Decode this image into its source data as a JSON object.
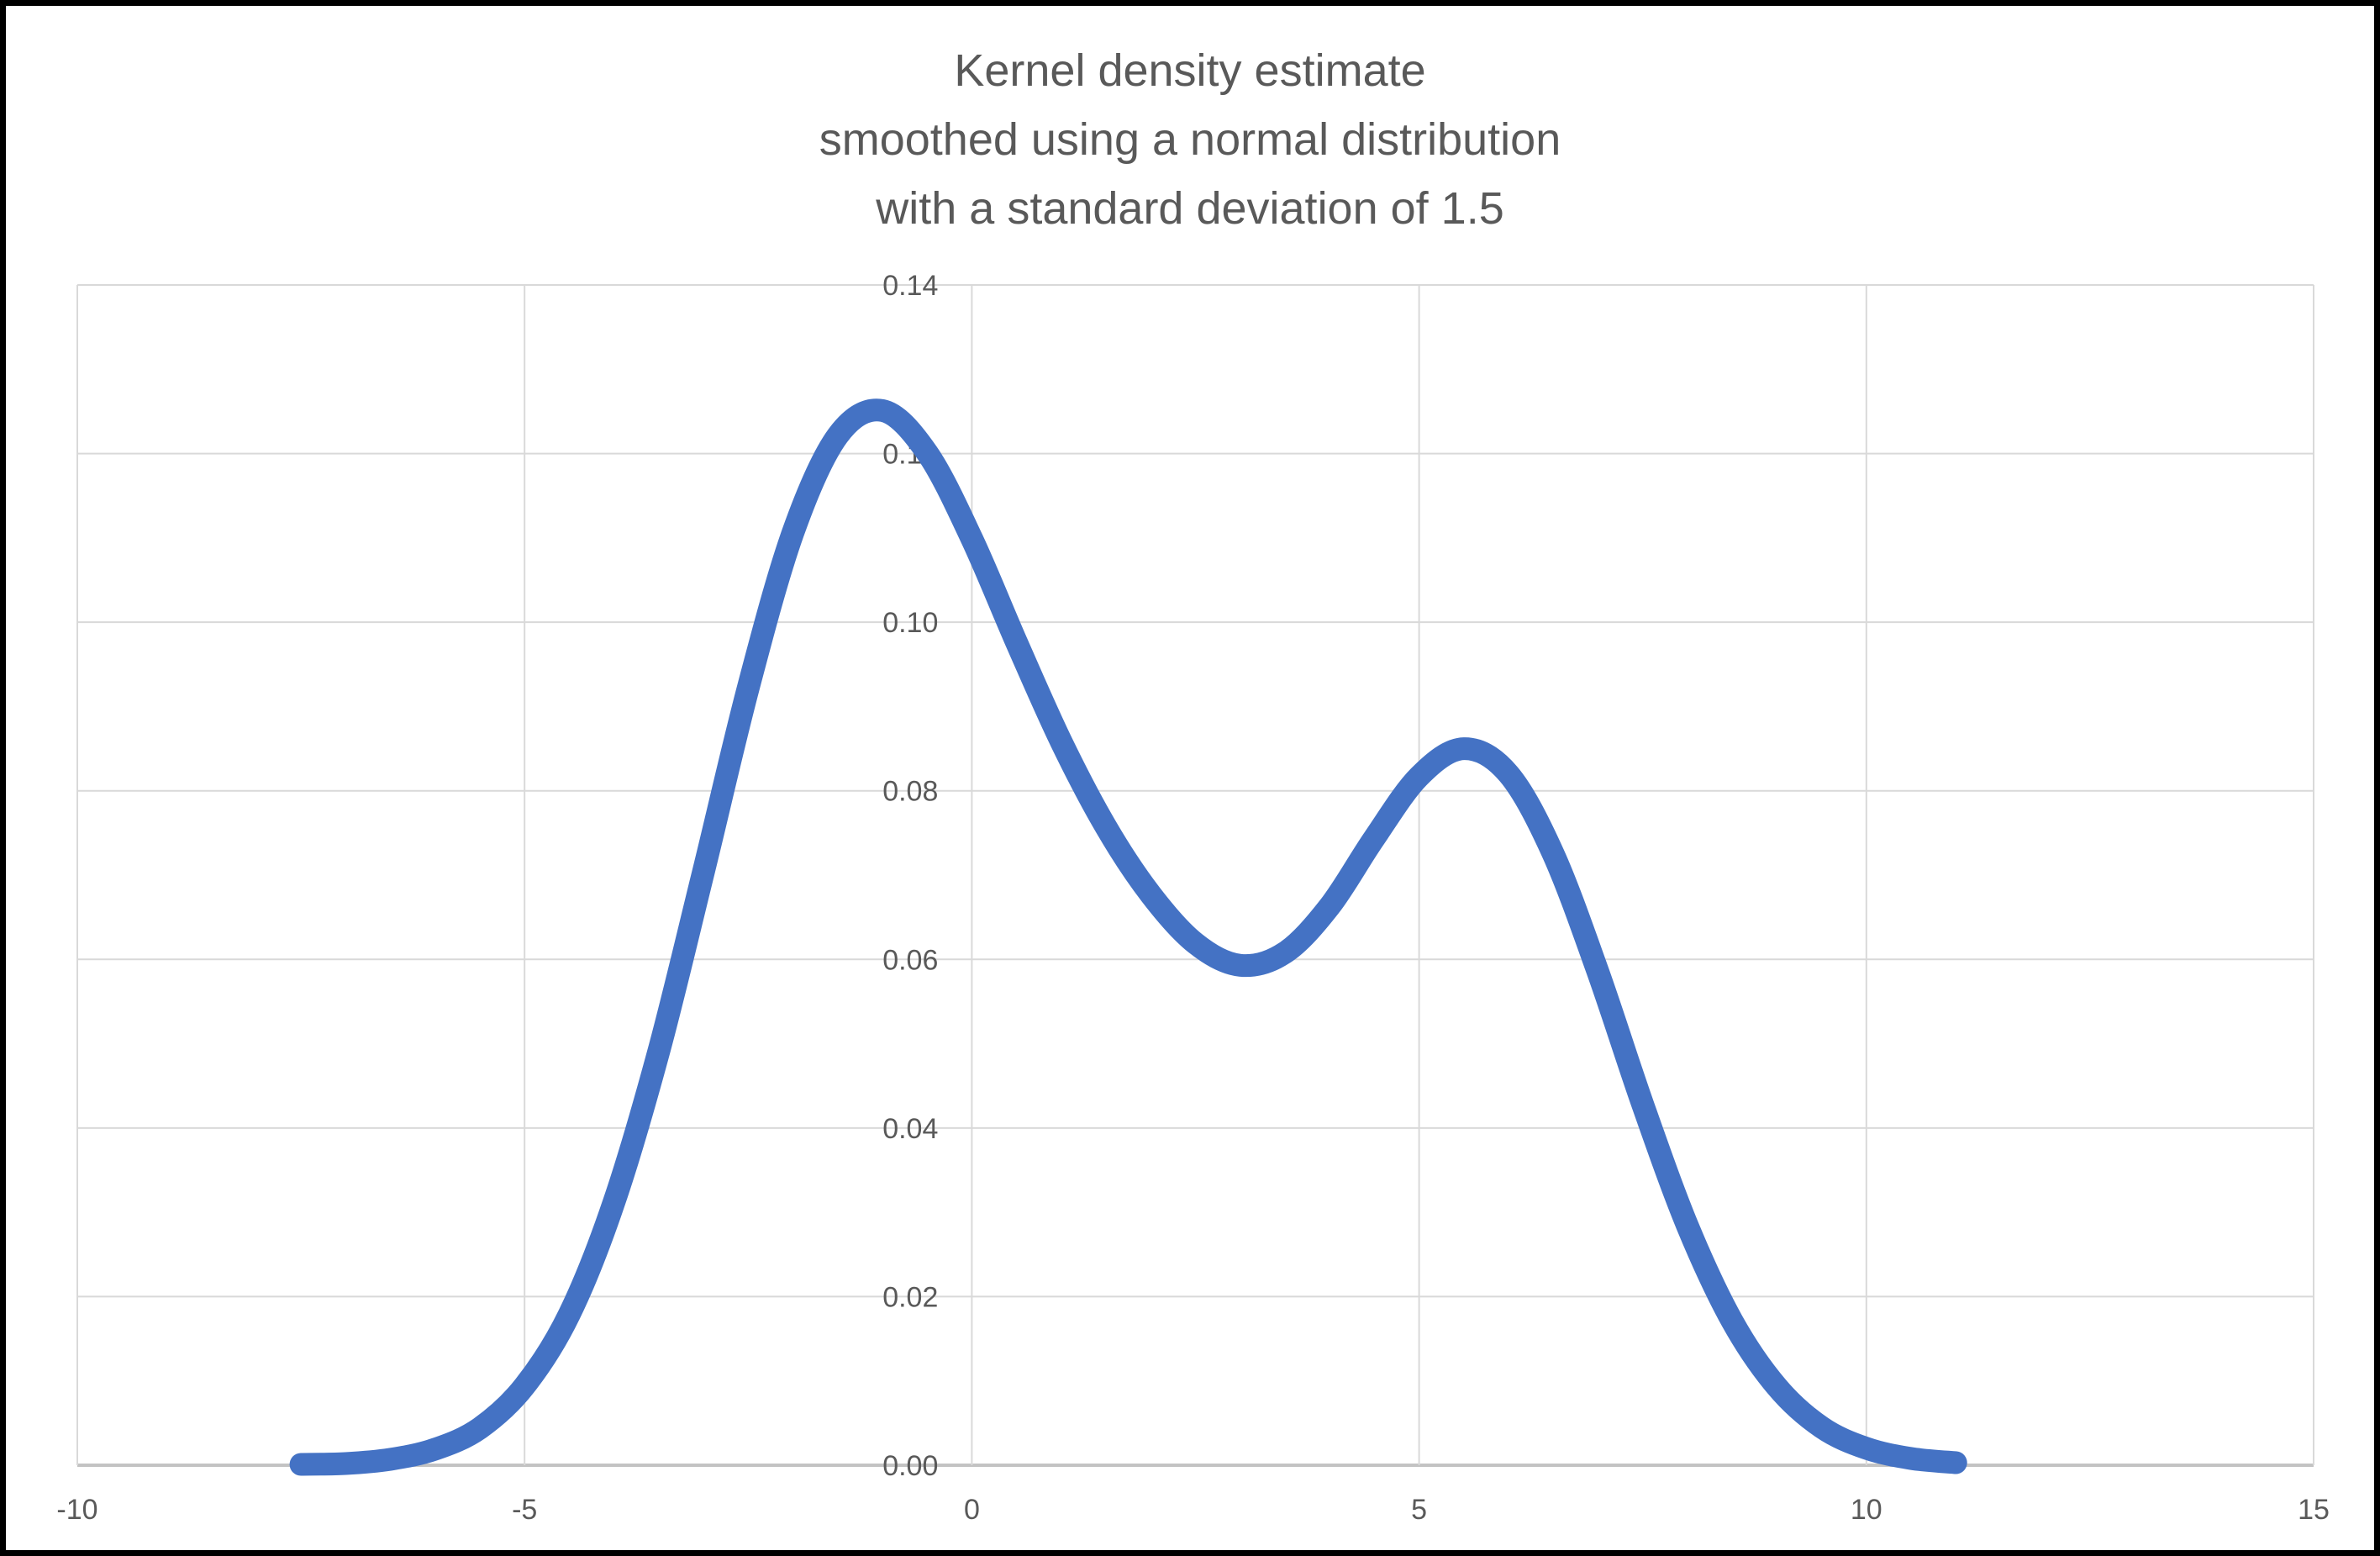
{
  "chart": {
    "title_lines": [
      "Kernel density estimate",
      "smoothed using a normal distribution",
      "with a standard deviation of 1.5"
    ]
  },
  "chart_data": {
    "type": "line",
    "title": "Kernel density estimate smoothed using a normal distribution with a standard deviation of 1.5",
    "xlabel": "",
    "ylabel": "",
    "xlim": [
      -10,
      15
    ],
    "ylim": [
      0,
      0.14
    ],
    "grid": true,
    "legend": false,
    "smoothing_distribution": "normal",
    "smoothing_standard_deviation": 1.5,
    "x_ticks": [
      -10,
      -5,
      0,
      5,
      10,
      15
    ],
    "x_tick_labels": [
      "-10",
      "-5",
      "0",
      "5",
      "10",
      "15"
    ],
    "y_ticks": [
      0,
      0.02,
      0.04,
      0.06,
      0.08,
      0.1,
      0.12,
      0.14
    ],
    "y_tick_labels": [
      "0.00",
      "0.02",
      "0.04",
      "0.06",
      "0.08",
      "0.10",
      "0.12",
      "0.14"
    ],
    "series": [
      {
        "name": "Kernel density estimate",
        "color": "#4472C4",
        "x": [
          -7.5,
          -7.0,
          -6.5,
          -6.0,
          -5.5,
          -5.0,
          -4.5,
          -4.0,
          -3.5,
          -3.0,
          -2.5,
          -2.0,
          -1.5,
          -1.0,
          -0.5,
          0.0,
          0.5,
          1.0,
          1.5,
          2.0,
          2.5,
          3.0,
          3.5,
          4.0,
          4.5,
          5.0,
          5.5,
          6.0,
          6.5,
          7.0,
          7.5,
          8.0,
          8.5,
          9.0,
          9.5,
          10.0,
          10.5,
          11.0
        ],
        "y": [
          0.0001,
          0.0002,
          0.0007,
          0.0019,
          0.0044,
          0.0094,
          0.0179,
          0.0312,
          0.0491,
          0.0704,
          0.0922,
          0.1106,
          0.1221,
          0.1251,
          0.1201,
          0.1099,
          0.0976,
          0.0858,
          0.0757,
          0.0677,
          0.0619,
          0.0593,
          0.0608,
          0.0663,
          0.0744,
          0.0817,
          0.085,
          0.082,
          0.0725,
          0.0585,
          0.0428,
          0.0284,
          0.0171,
          0.0093,
          0.0045,
          0.002,
          0.0008,
          0.0003
        ]
      }
    ],
    "colors": {
      "line": "#4472C4",
      "gridline": "#D9D9D9",
      "axis_line": "#C3C3C3",
      "text": "#595959",
      "background": "#FFFFFF",
      "frame": "#000000"
    }
  }
}
